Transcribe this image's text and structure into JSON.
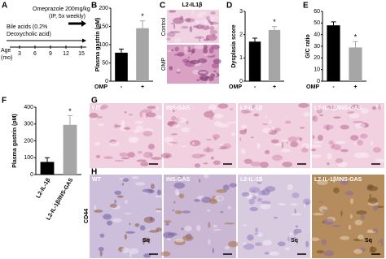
{
  "panel_labels": [
    "A",
    "B",
    "C",
    "D",
    "E",
    "F",
    "G",
    "H"
  ],
  "timeline": {
    "drug": "Omeprazole 200mg/kg",
    "drug_regimen": "(IP, 5x weekly)",
    "diet_line1": "Bile acids (0.2%",
    "diet_line2": "Deoxycholic acid)",
    "axis_label": "Age",
    "axis_unit": "(mo)",
    "ticks": [
      3,
      6,
      9,
      12,
      15
    ]
  },
  "panel_c": {
    "title": "L2-IL1β",
    "rows": [
      "Control",
      "OMP"
    ]
  },
  "panel_g": {
    "columns": [
      "WT",
      "INS-GAS",
      "L2-IL-1β",
      "L2-IL-1β/INS-GAS"
    ]
  },
  "panel_h": {
    "stain": "CD44",
    "columns": [
      "WT",
      "INS-GAS",
      "L2-IL-1β",
      "L2-IL-1β/INS-GAS"
    ],
    "marker": "Sq"
  },
  "chart_data": [
    {
      "type": "bar",
      "y_label": "Plasma gastrin (pM)",
      "x_label": "OMP",
      "categories": [
        "-",
        "+"
      ],
      "values": [
        78,
        145
      ],
      "errors": [
        10,
        20
      ],
      "colors": [
        "#000000",
        "#a6a6a6"
      ],
      "significance": [
        null,
        "*"
      ],
      "ylim": [
        0,
        200
      ],
      "yticks": [
        0,
        50,
        100,
        150,
        200
      ]
    },
    {
      "type": "bar",
      "y_label": "Dysplasia score",
      "x_label": "OMP",
      "categories": [
        "-",
        "+"
      ],
      "values": [
        1.7,
        2.2
      ],
      "errors": [
        0.15,
        0.15
      ],
      "colors": [
        "#000000",
        "#a6a6a6"
      ],
      "significance": [
        null,
        "*"
      ],
      "ylim": [
        0,
        3
      ],
      "yticks": [
        0,
        1,
        2,
        3
      ]
    },
    {
      "type": "bar",
      "y_label": "G/C ratio",
      "x_label": "OMP",
      "categories": [
        "-",
        "+"
      ],
      "values": [
        48,
        29
      ],
      "errors": [
        3,
        5
      ],
      "colors": [
        "#000000",
        "#a6a6a6"
      ],
      "significance": [
        null,
        "*"
      ],
      "ylim": [
        0,
        60
      ],
      "yticks": [
        0,
        10,
        20,
        30,
        40,
        50,
        60
      ]
    },
    {
      "type": "bar",
      "y_label": "Plasma gastrin (pM)",
      "categories": [
        "L2-IL-1β",
        "L2-IL-1β/INS-GAS"
      ],
      "values": [
        75,
        295
      ],
      "errors": [
        25,
        55
      ],
      "colors": [
        "#000000",
        "#a6a6a6"
      ],
      "significance": [
        null,
        "*"
      ],
      "ylim": [
        0,
        400
      ],
      "yticks": [
        0,
        100,
        200,
        300,
        400
      ]
    }
  ]
}
